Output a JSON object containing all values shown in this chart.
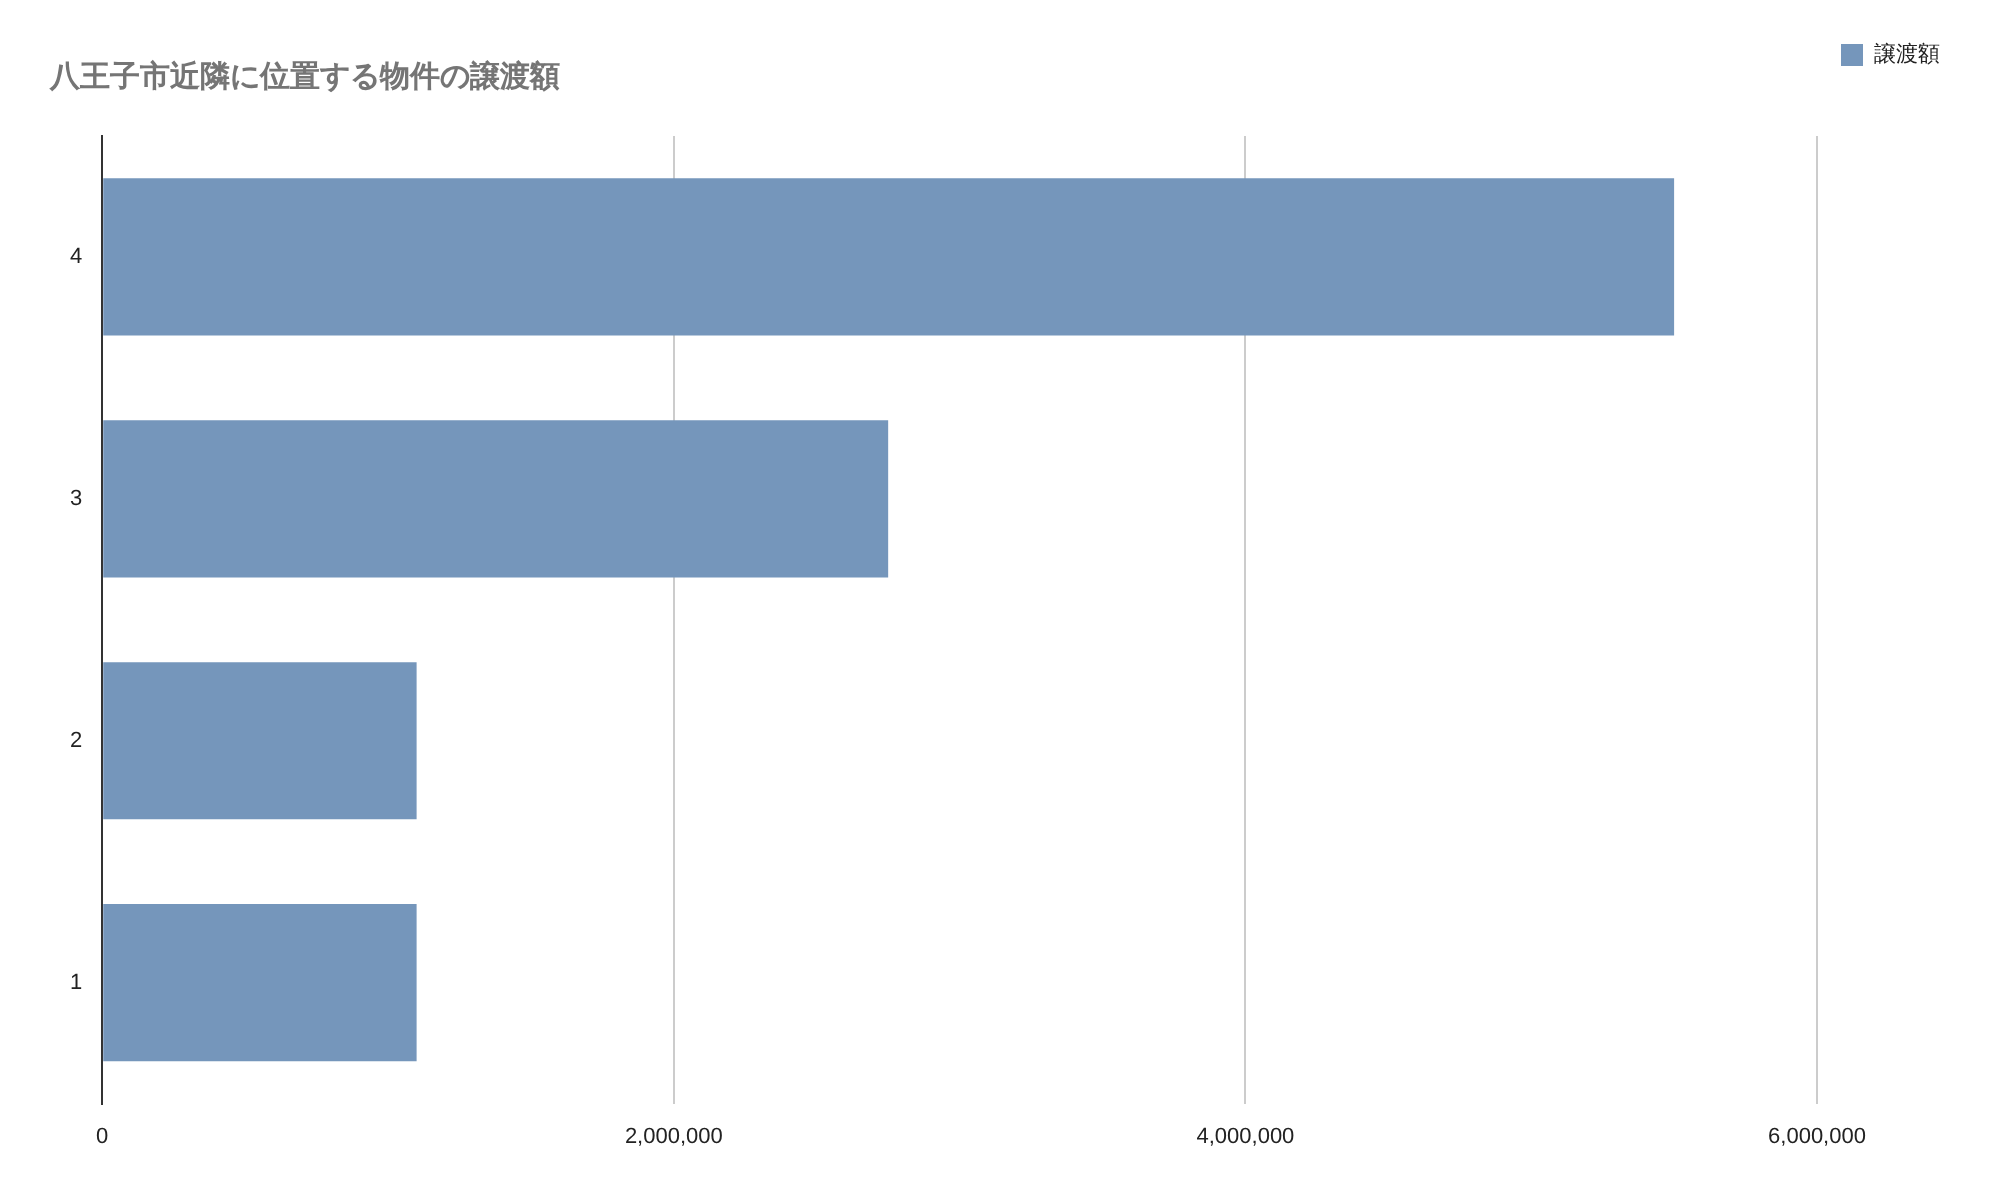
{
  "chart_data": {
    "type": "bar",
    "orientation": "horizontal",
    "title": "八王子市近隣に位置する物件の譲渡額",
    "categories": [
      "4",
      "3",
      "2",
      "1"
    ],
    "series": [
      {
        "name": "譲渡額",
        "color": "#7596bb",
        "values": [
          5500000,
          2750000,
          1100000,
          1100000
        ]
      }
    ],
    "xlim": [
      0,
      6000000
    ],
    "xticks": [
      {
        "value": 0,
        "label": "0"
      },
      {
        "value": 2000000,
        "label": "2,000,000"
      },
      {
        "value": 4000000,
        "label": "4,000,000"
      },
      {
        "value": 6000000,
        "label": "6,000,000"
      }
    ],
    "grid": "x",
    "legend": "top right"
  }
}
